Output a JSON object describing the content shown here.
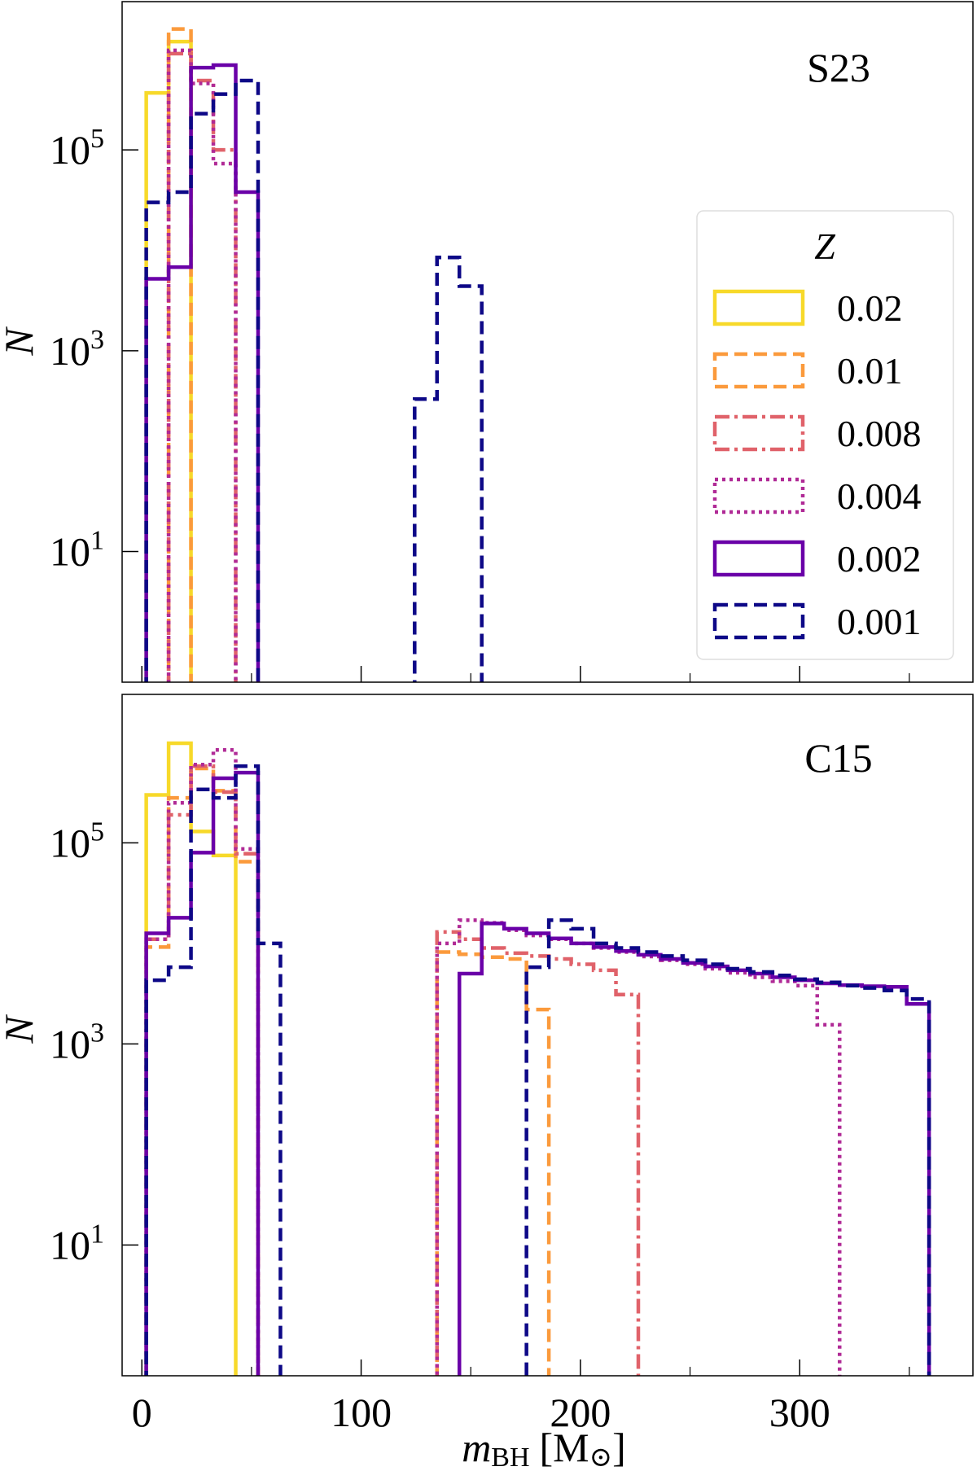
{
  "chart_data": [
    {
      "type": "histogram-step",
      "title": "S23",
      "ylabel": "N",
      "xlabel": "",
      "xlim": [
        -9,
        379
      ],
      "ylim": [
        0.5,
        3000000
      ],
      "yscale": "log",
      "bin_start": 2,
      "bin_width": 10.2,
      "x_ticks": [
        0,
        100,
        200,
        300
      ],
      "y_ticks": [
        "10^1",
        "10^3",
        "10^5"
      ],
      "y_tick_values": [
        10,
        1000,
        100000
      ],
      "legend": {
        "title": "Z",
        "placement": "right"
      },
      "series": [
        {
          "name": "0.02",
          "color": "#f7d92a",
          "style": "solid",
          "counts": [
            370000,
            1200000
          ]
        },
        {
          "name": "0.01",
          "color": "#fb9a3c",
          "style": "dashed",
          "counts": [
            0,
            1600000
          ]
        },
        {
          "name": "0.008",
          "color": "#e0626a",
          "style": "dashdot",
          "counts": [
            0,
            910000,
            490000,
            100000
          ]
        },
        {
          "name": "0.004",
          "color": "#b02a96",
          "style": "dotted",
          "counts": [
            0,
            980000,
            460000,
            73000
          ]
        },
        {
          "name": "0.002",
          "color": "#6a00a8",
          "style": "solid",
          "counts": [
            5200,
            6800,
            660000,
            700000,
            38000
          ]
        },
        {
          "name": "0.001",
          "color": "#0d0887",
          "style": "dashed",
          "counts": [
            30000,
            38000,
            230000,
            360000,
            490000,
            0,
            0,
            0,
            0,
            0,
            0,
            0,
            330,
            8500,
            4400
          ]
        }
      ]
    },
    {
      "type": "histogram-step",
      "title": "C15",
      "ylabel": "N",
      "xlabel": "m_BH [M_⊙]",
      "xlabel_main": "m",
      "xlabel_sub": "BH",
      "xlabel_unit": "[M",
      "xlabel_unit_sub": "⊙",
      "xlabel_unit_end": "]",
      "xlim": [
        -9,
        379
      ],
      "ylim": [
        0.5,
        3000000
      ],
      "yscale": "log",
      "bin_start": 2,
      "bin_width": 10.2,
      "x_ticks": [
        0,
        100,
        200,
        300
      ],
      "y_ticks": [
        "10^1",
        "10^3",
        "10^5"
      ],
      "y_tick_values": [
        10,
        1000,
        100000
      ],
      "series": [
        {
          "name": "0.02",
          "color": "#f7d92a",
          "style": "solid",
          "counts": [
            300000,
            980000,
            130000,
            75000
          ]
        },
        {
          "name": "0.01",
          "color": "#fb9a3c",
          "style": "dashed",
          "counts": [
            9200,
            280000,
            550000,
            330000,
            65000,
            0,
            0,
            0,
            0,
            0,
            0,
            0,
            0,
            8200,
            7800,
            7300,
            7000,
            2200
          ]
        },
        {
          "name": "0.008",
          "color": "#e0626a",
          "style": "dashdot",
          "counts": [
            11000,
            190000,
            580000,
            320000,
            78000,
            0,
            0,
            0,
            0,
            0,
            0,
            0,
            0,
            13000,
            11000,
            9000,
            8000,
            7500,
            7000,
            6200,
            5400,
            3100
          ]
        },
        {
          "name": "0.004",
          "color": "#b02a96",
          "style": "dotted",
          "counts": [
            11000,
            250000,
            600000,
            840000,
            87000,
            0,
            0,
            0,
            0,
            0,
            0,
            0,
            0,
            10000,
            17000,
            16000,
            13500,
            12000,
            11000,
            10000,
            9000,
            8200,
            7400,
            6800,
            6200,
            5600,
            5100,
            4600,
            4200,
            3800,
            1550
          ]
        },
        {
          "name": "0.002",
          "color": "#6a00a8",
          "style": "solid",
          "counts": [
            12600,
            18000,
            80000,
            440000,
            500000,
            0,
            0,
            0,
            0,
            0,
            0,
            0,
            0,
            0,
            5000,
            15800,
            14000,
            12600,
            11200,
            10000,
            9200,
            8400,
            7700,
            7000,
            6400,
            5900,
            5400,
            5000,
            4600,
            4300,
            4000,
            3850,
            3750,
            3700,
            2500
          ]
        },
        {
          "name": "0.001",
          "color": "#0d0887",
          "style": "dashed",
          "counts": [
            4300,
            5800,
            340000,
            280000,
            580000,
            10000,
            0,
            0,
            0,
            0,
            0,
            0,
            0,
            0,
            0,
            0,
            0,
            5800,
            17000,
            14000,
            10000,
            9000,
            8200,
            7500,
            6800,
            6200,
            5600,
            5200,
            4800,
            4400,
            4100,
            3800,
            3600,
            3400,
            2800
          ]
        }
      ]
    }
  ]
}
